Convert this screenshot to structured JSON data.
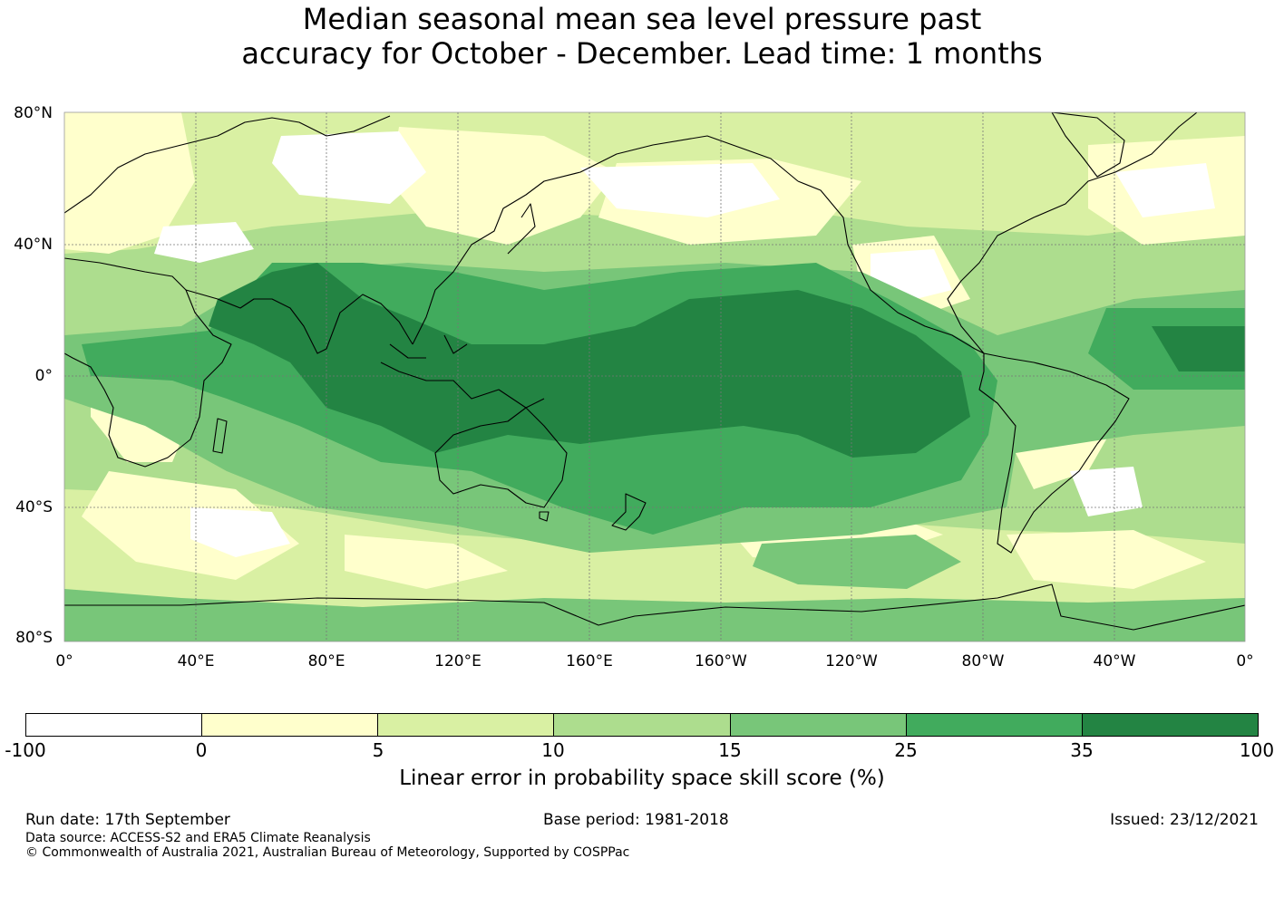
{
  "title": {
    "line1": "Median seasonal mean sea level pressure past",
    "line2": "accuracy for October - December. Lead time: 1 months"
  },
  "map": {
    "lat_labels": [
      "80°N",
      "40°N",
      "0°",
      "40°S",
      "80°S"
    ],
    "lon_labels": [
      "0°",
      "40°E",
      "80°E",
      "120°E",
      "160°E",
      "160°W",
      "120°W",
      "80°W",
      "40°W",
      "0°"
    ],
    "lat_values": [
      80,
      40,
      0,
      -40,
      -80
    ],
    "lon_values": [
      0,
      40,
      80,
      120,
      160,
      200,
      240,
      280,
      320,
      360
    ],
    "colors": {
      "ocean_base": "#addd8e",
      "land_line": "#000000",
      "grid": "#777777"
    }
  },
  "colorbar": {
    "ticks": [
      "-100",
      "0",
      "5",
      "10",
      "15",
      "25",
      "35",
      "100"
    ],
    "colors": [
      "#ffffff",
      "#ffffcc",
      "#d9f0a3",
      "#addd8e",
      "#78c679",
      "#41ab5d",
      "#238443"
    ],
    "label": "Linear error in probability space skill score (%)"
  },
  "footer": {
    "run_date": "Run date: 17th September",
    "base_period": "Base period: 1981-2018",
    "issued": "Issued: 23/12/2021",
    "data_source": "Data source: ACCESS-S2 and ERA5 Climate Reanalysis",
    "copyright": "© Commonwealth of Australia 2021, Australian Bureau of Meteorology, Supported by COSPPac"
  }
}
